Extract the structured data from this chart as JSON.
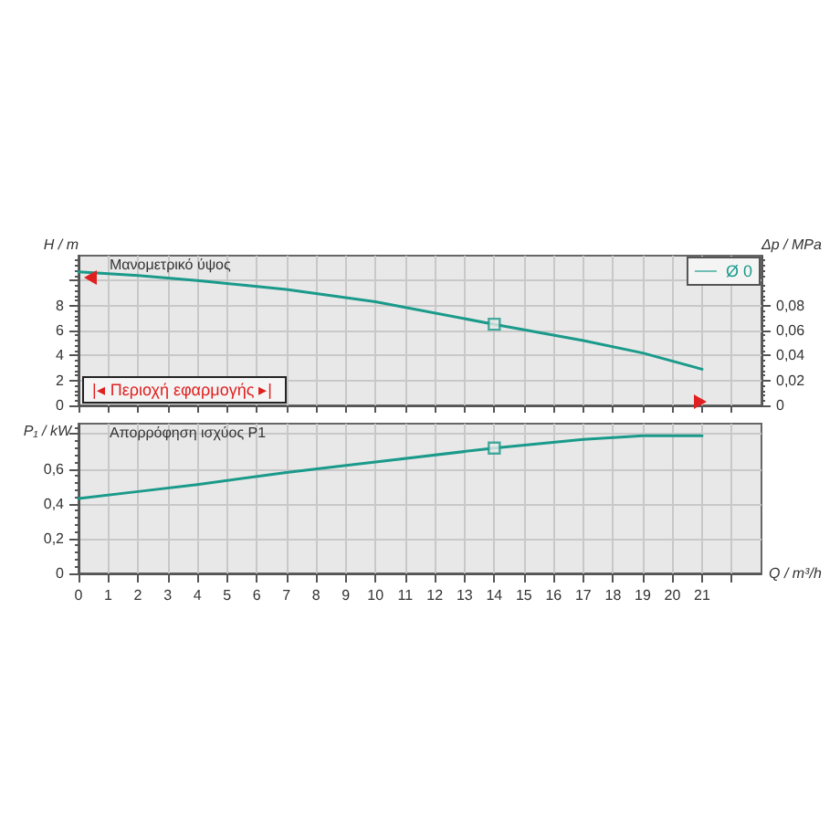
{
  "chart_data": [
    {
      "type": "line",
      "ylabel": "H / m",
      "y2label": "Δp / MPa",
      "x": [
        0,
        2,
        4,
        7,
        10,
        14,
        17,
        19,
        21
      ],
      "series": [
        {
          "name": "Ø 0",
          "color": "#1a9a8a",
          "values": [
            10.7,
            10.4,
            10.0,
            9.3,
            8.3,
            6.5,
            5.2,
            4.2,
            2.9
          ]
        },
        {
          "type": "scatter",
          "marker": "square",
          "color": "#1a9a8a",
          "x": [
            14
          ],
          "values": [
            6.5
          ]
        }
      ],
      "xlim": [
        0,
        23
      ],
      "xticks": [
        0,
        1,
        2,
        3,
        4,
        5,
        6,
        7,
        8,
        9,
        10,
        11,
        12,
        13,
        14,
        15,
        16,
        17,
        18,
        19,
        20,
        21,
        {
          "value": 22,
          "label": null
        }
      ],
      "ylim": [
        0,
        12
      ],
      "yticks": [
        0,
        2,
        4,
        6,
        8,
        {
          "value": 10,
          "label": null
        }
      ],
      "y2lim": [
        0,
        0.12
      ],
      "y2ticks": [
        0,
        {
          "value": 0.02,
          "label": "0,02"
        },
        {
          "value": 0.04,
          "label": "0,04"
        },
        {
          "value": 0.06,
          "label": "0,06"
        },
        {
          "value": 0.08,
          "label": "0,08"
        }
      ],
      "grid": true,
      "legend": "top right",
      "tick_labels": "y",
      "marker": "none",
      "annotations": [
        "Μανομετρικό ύψος",
        "|◂ Περιοχή εφαρμογής ▸|"
      ]
    },
    {
      "type": "line",
      "ylabel": "P₁ / kW",
      "xlabel": "Q / m³/h",
      "x": [
        0,
        2,
        4,
        7,
        10,
        14,
        17,
        19,
        21
      ],
      "series": [
        {
          "color": "#1a9a8a",
          "values": [
            0.43,
            0.47,
            0.51,
            0.58,
            0.64,
            0.72,
            0.77,
            0.79,
            0.79
          ]
        },
        {
          "type": "scatter",
          "marker": "square",
          "color": "#1a9a8a",
          "x": [
            14
          ],
          "values": [
            0.72
          ]
        }
      ],
      "xlim": [
        0,
        23
      ],
      "xticks": [
        0,
        1,
        2,
        3,
        4,
        5,
        6,
        7,
        8,
        9,
        10,
        11,
        12,
        13,
        14,
        15,
        16,
        17,
        18,
        19,
        20,
        21,
        {
          "value": 22,
          "label": null
        }
      ],
      "ylim": [
        0,
        0.86
      ],
      "yticks": [
        0,
        {
          "value": 0.2,
          "label": "0,2"
        },
        {
          "value": 0.4,
          "label": "0,4"
        },
        {
          "value": 0.6,
          "label": "0,6"
        },
        {
          "value": 0.8,
          "label": null
        }
      ],
      "grid": true,
      "marker": "none",
      "annotations": [
        "Απορρόφηση ισχύος P1"
      ]
    }
  ]
}
